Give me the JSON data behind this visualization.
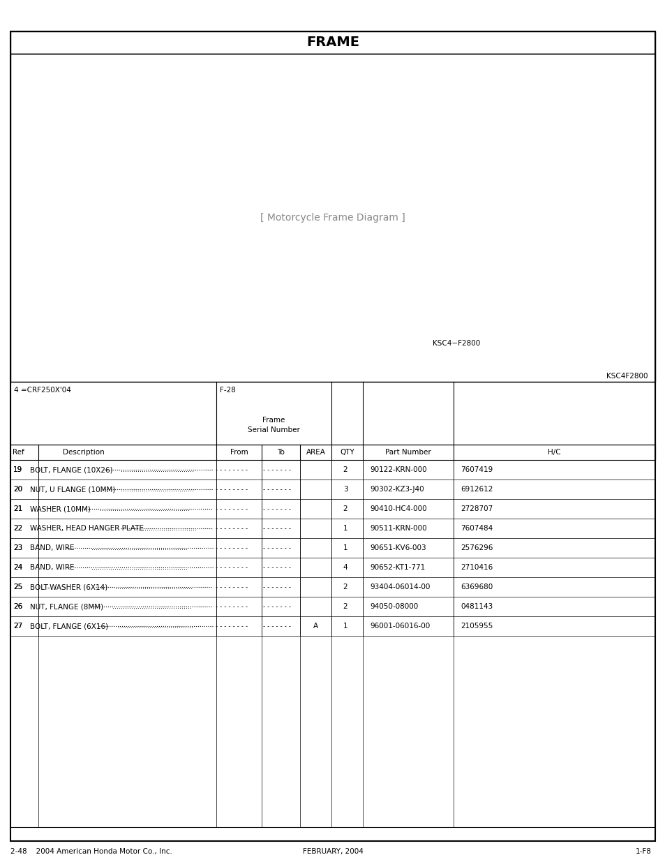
{
  "title": "FRAME",
  "diagram_image_placeholder": true,
  "diagram_label": "KSC4-F2800",
  "diagram_label2": "KSC4F2800",
  "header_left": "4 =CRF250X'04",
  "header_mid": "F-28",
  "frame_serial_label": "Frame\nSerial Number",
  "col_headers": [
    "Ref",
    "Description",
    "From",
    "To",
    "AREA",
    "QTY",
    "Part Number",
    "H/C"
  ],
  "parts": [
    {
      "ref": "19",
      "desc": "BOLT, FLANGE (10X26)",
      "from": "--------",
      "to": "--------",
      "area": "",
      "qty": "2",
      "part": "90122-KRN-000",
      "hc": "7607419"
    },
    {
      "ref": "20",
      "desc": "NUT, U FLANGE (10MM)",
      "from": "--------",
      "to": "--------",
      "area": "",
      "qty": "3",
      "part": "90302-KZ3-J40",
      "hc": "6912612"
    },
    {
      "ref": "21",
      "desc": "WASHER (10MM)",
      "from": "--------",
      "to": "--------",
      "area": "",
      "qty": "2",
      "part": "90410-HC4-000",
      "hc": "2728707"
    },
    {
      "ref": "22",
      "desc": "WASHER, HEAD HANGER PLATE",
      "from": "--------",
      "to": "--------",
      "area": "",
      "qty": "1",
      "part": "90511-KRN-000",
      "hc": "7607484"
    },
    {
      "ref": "23",
      "desc": "BAND, WIRE",
      "from": "--------",
      "to": "--------",
      "area": "",
      "qty": "1",
      "part": "90651-KV6-003",
      "hc": "2576296"
    },
    {
      "ref": "24",
      "desc": "BAND, WIRE",
      "from": "--------",
      "to": "--------",
      "area": "",
      "qty": "4",
      "part": "90652-KT1-771",
      "hc": "2710416"
    },
    {
      "ref": "25",
      "desc": "BOLT-WASHER (6X14)",
      "from": "--------",
      "to": "--------",
      "area": "",
      "qty": "2",
      "part": "93404-06014-00",
      "hc": "6369680"
    },
    {
      "ref": "26",
      "desc": "NUT, FLANGE (8MM)",
      "from": "--------",
      "to": "--------",
      "area": "",
      "qty": "2",
      "part": "94050-08000",
      "hc": "0481143"
    },
    {
      "ref": "27",
      "desc": "BOLT, FLANGE (6X16)",
      "from": "--------",
      "to": "--------",
      "area": "A",
      "qty": "1",
      "part": "96001-06016-00",
      "hc": "2105955"
    }
  ],
  "footer_left": "2-48    2004 American Honda Motor Co., Inc.",
  "footer_mid": "FEBRUARY, 2004",
  "footer_right": "1-F8",
  "bg_color": "#ffffff",
  "border_color": "#000000",
  "text_color": "#000000"
}
